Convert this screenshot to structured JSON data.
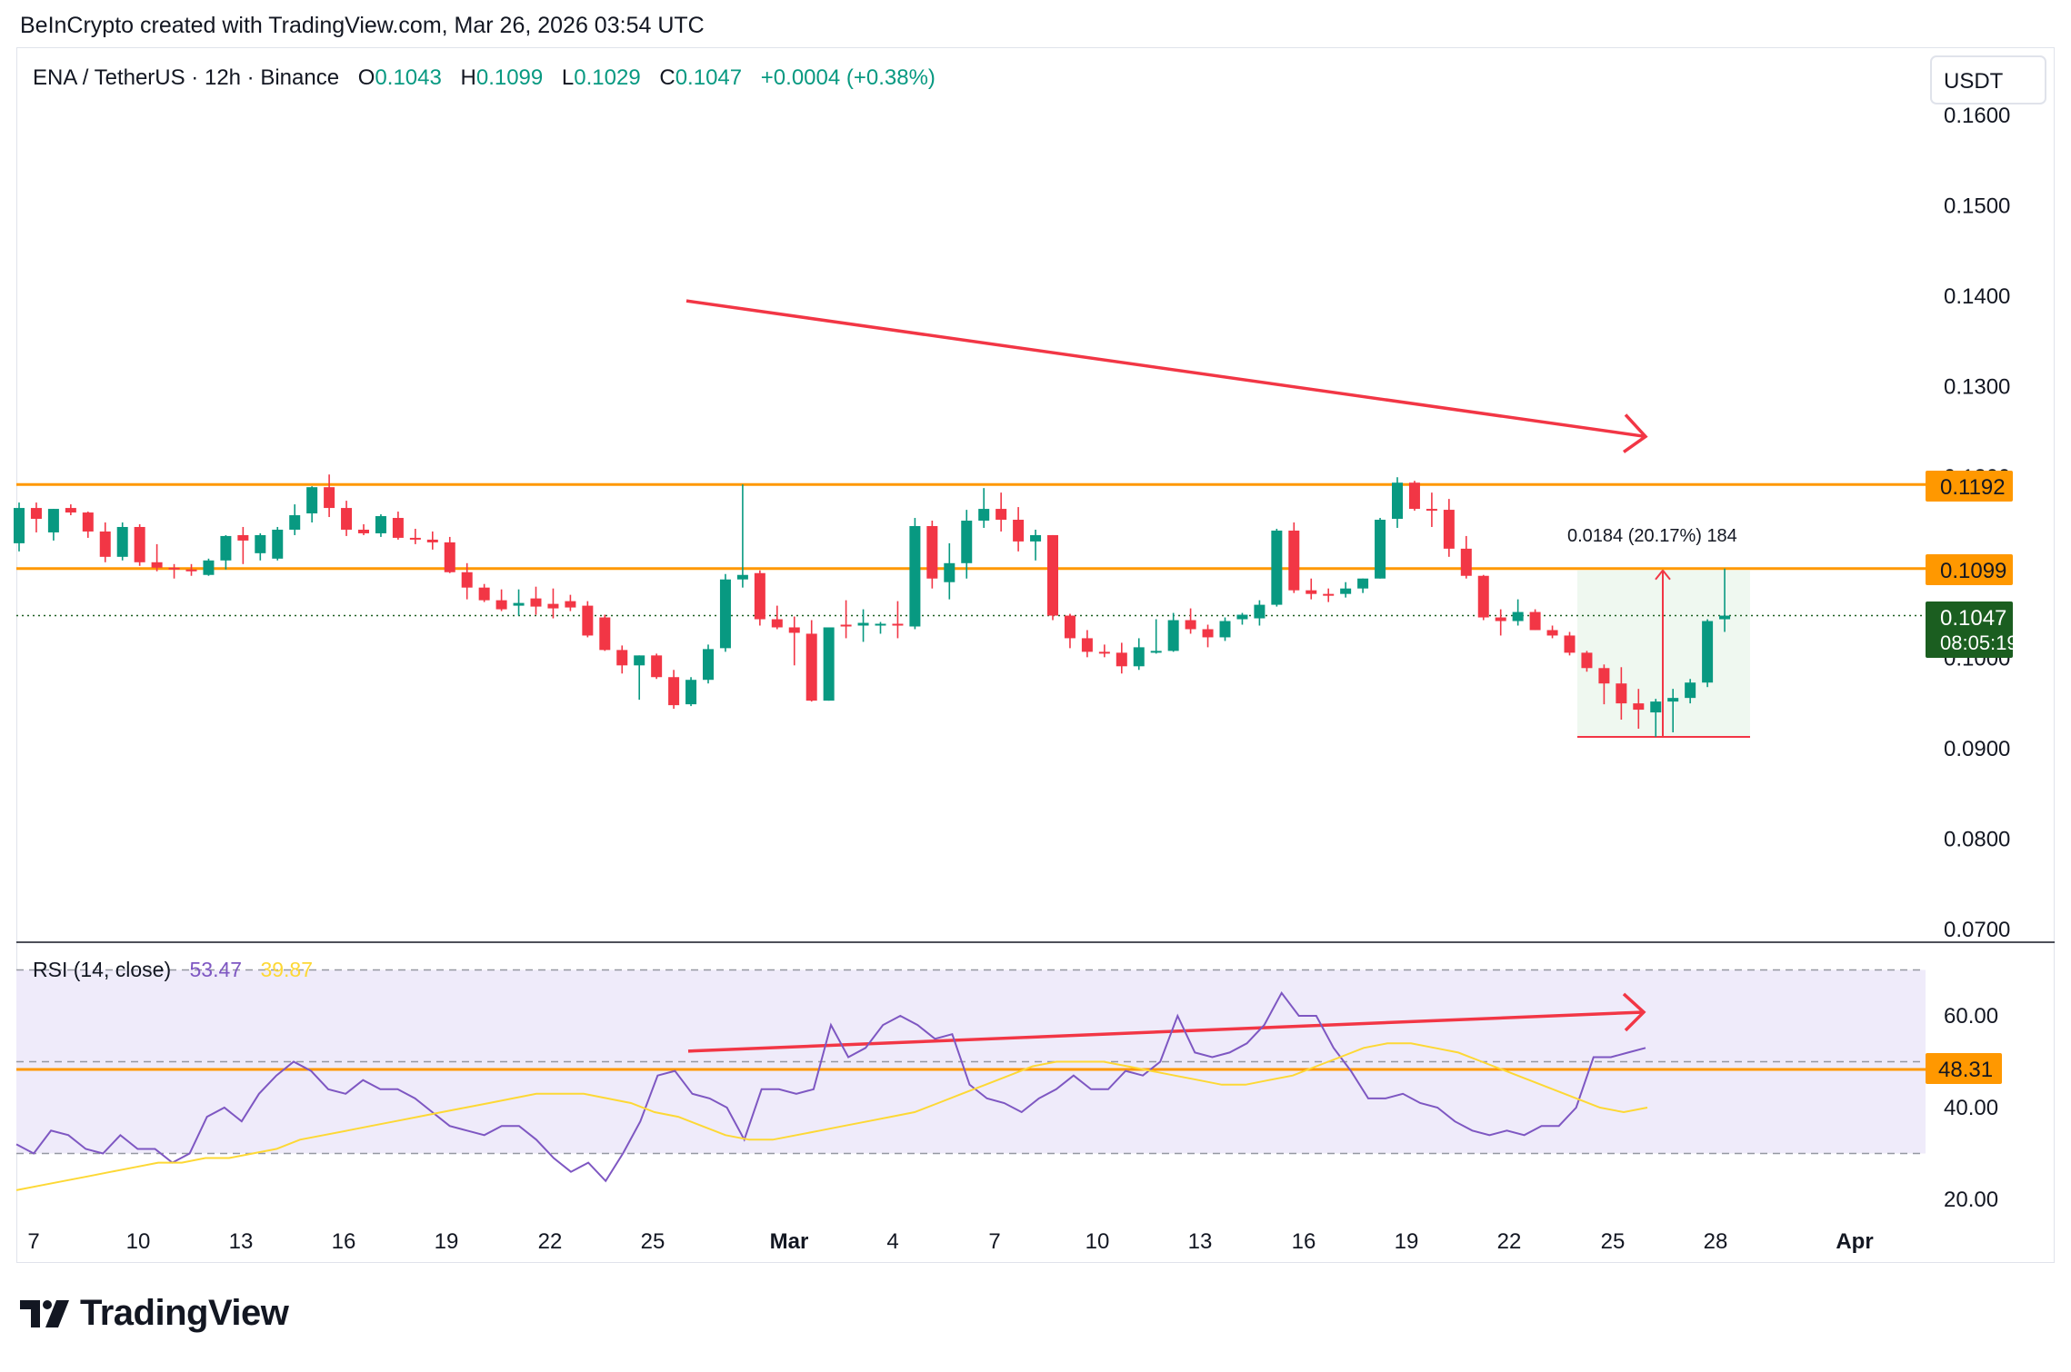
{
  "header": {
    "attribution": "BeInCrypto created with TradingView.com, Mar 26, 2026 03:54 UTC"
  },
  "legend": {
    "symbol": "ENA / TetherUS · 12h · Binance",
    "o_label": "O",
    "o_value": "0.1043",
    "h_label": "H",
    "h_value": "0.1099",
    "l_label": "L",
    "l_value": "0.1029",
    "c_label": "C",
    "c_value": "0.1047",
    "change": "+0.0004 (+0.38%)"
  },
  "currency_button": "USDT",
  "price_labels": {
    "resistance_upper": "0.1192",
    "resistance_lower": "0.1099",
    "last_price": "0.1047",
    "countdown": "08:05:19",
    "rsi_level": "48.31"
  },
  "measure_label": "0.0184 (20.17%) 184",
  "rsi_legend": {
    "name": "RSI (14, close)",
    "rsi_value": "53.47",
    "ma_value": "39.87"
  },
  "logo": {
    "text": "TradingView"
  },
  "colors": {
    "up": "#089981",
    "down": "#f23645",
    "support_line": "#ff9800",
    "trend_arrow": "#f23645",
    "rsi_line": "#7e57c2",
    "rsi_ma": "#fdd835",
    "rsi_band": "#efebfa"
  },
  "chart_data": [
    {
      "type": "candlestick",
      "title": "ENA / TetherUS · 12h · Binance",
      "y_axis_ticks": [
        "0.1600",
        "0.1500",
        "0.1400",
        "0.1300",
        "0.1200",
        "0.1100",
        "0.1000",
        "0.0900",
        "0.0800",
        "0.0700"
      ],
      "ylim": [
        0.07,
        0.165
      ],
      "x_tick_labels": [
        "7",
        "10",
        "13",
        "16",
        "19",
        "22",
        "25",
        "Mar",
        "4",
        "7",
        "10",
        "13",
        "16",
        "19",
        "22",
        "25",
        "28",
        "Apr"
      ],
      "horizontal_levels": [
        0.1192,
        0.1099
      ],
      "last_price": 0.1047,
      "trend_arrow": {
        "from": 0.1395,
        "to": 0.1245,
        "direction": "down"
      },
      "measure": {
        "low": 0.0913,
        "high": 0.1097,
        "label": "0.0184 (20.17%) 184"
      },
      "candles": [
        {
          "o": 0.1127,
          "h": 0.1172,
          "l": 0.1118,
          "c": 0.1166
        },
        {
          "o": 0.1166,
          "h": 0.1172,
          "l": 0.1139,
          "c": 0.1154
        },
        {
          "o": 0.1139,
          "h": 0.1165,
          "l": 0.113,
          "c": 0.1165
        },
        {
          "o": 0.1166,
          "h": 0.117,
          "l": 0.1158,
          "c": 0.1161
        },
        {
          "o": 0.1161,
          "h": 0.1162,
          "l": 0.1133,
          "c": 0.114
        },
        {
          "o": 0.114,
          "h": 0.115,
          "l": 0.1106,
          "c": 0.1112
        },
        {
          "o": 0.1112,
          "h": 0.115,
          "l": 0.1108,
          "c": 0.1145
        },
        {
          "o": 0.1145,
          "h": 0.1148,
          "l": 0.1102,
          "c": 0.1106
        },
        {
          "o": 0.1106,
          "h": 0.1126,
          "l": 0.1096,
          "c": 0.11
        },
        {
          "o": 0.11,
          "h": 0.1104,
          "l": 0.1088,
          "c": 0.1098
        },
        {
          "o": 0.1098,
          "h": 0.1104,
          "l": 0.1091,
          "c": 0.1096
        },
        {
          "o": 0.1092,
          "h": 0.111,
          "l": 0.1091,
          "c": 0.1108
        },
        {
          "o": 0.1108,
          "h": 0.1136,
          "l": 0.1098,
          "c": 0.1135
        },
        {
          "o": 0.1136,
          "h": 0.1145,
          "l": 0.1104,
          "c": 0.113
        },
        {
          "o": 0.1116,
          "h": 0.1138,
          "l": 0.1108,
          "c": 0.1136
        },
        {
          "o": 0.111,
          "h": 0.1145,
          "l": 0.1108,
          "c": 0.1142
        },
        {
          "o": 0.1142,
          "h": 0.117,
          "l": 0.1136,
          "c": 0.1158
        },
        {
          "o": 0.116,
          "h": 0.119,
          "l": 0.115,
          "c": 0.1189
        },
        {
          "o": 0.1189,
          "h": 0.1203,
          "l": 0.1156,
          "c": 0.1166
        },
        {
          "o": 0.1166,
          "h": 0.1174,
          "l": 0.1135,
          "c": 0.1142
        },
        {
          "o": 0.1142,
          "h": 0.1148,
          "l": 0.1136,
          "c": 0.1138
        },
        {
          "o": 0.1138,
          "h": 0.1159,
          "l": 0.1134,
          "c": 0.1157
        },
        {
          "o": 0.1155,
          "h": 0.1162,
          "l": 0.1131,
          "c": 0.1133
        },
        {
          "o": 0.1133,
          "h": 0.1143,
          "l": 0.1126,
          "c": 0.1131
        },
        {
          "o": 0.1131,
          "h": 0.114,
          "l": 0.112,
          "c": 0.1128
        },
        {
          "o": 0.1128,
          "h": 0.1134,
          "l": 0.1094,
          "c": 0.1095
        },
        {
          "o": 0.1095,
          "h": 0.1105,
          "l": 0.1065,
          "c": 0.1078
        },
        {
          "o": 0.1078,
          "h": 0.1082,
          "l": 0.1062,
          "c": 0.1064
        },
        {
          "o": 0.1064,
          "h": 0.1076,
          "l": 0.1052,
          "c": 0.1054
        },
        {
          "o": 0.1058,
          "h": 0.1076,
          "l": 0.1047,
          "c": 0.1061
        },
        {
          "o": 0.1066,
          "h": 0.1079,
          "l": 0.1048,
          "c": 0.1057
        },
        {
          "o": 0.106,
          "h": 0.1077,
          "l": 0.1044,
          "c": 0.1055
        },
        {
          "o": 0.1063,
          "h": 0.107,
          "l": 0.1052,
          "c": 0.1056
        },
        {
          "o": 0.1058,
          "h": 0.1063,
          "l": 0.1023,
          "c": 0.1025
        },
        {
          "o": 0.1045,
          "h": 0.1048,
          "l": 0.1008,
          "c": 0.1009
        },
        {
          "o": 0.1009,
          "h": 0.1014,
          "l": 0.0983,
          "c": 0.0992
        },
        {
          "o": 0.0992,
          "h": 0.1002,
          "l": 0.0954,
          "c": 0.1003
        },
        {
          "o": 0.1003,
          "h": 0.1005,
          "l": 0.0977,
          "c": 0.0979
        },
        {
          "o": 0.0979,
          "h": 0.0987,
          "l": 0.0944,
          "c": 0.0948
        },
        {
          "o": 0.0949,
          "h": 0.0979,
          "l": 0.0947,
          "c": 0.0976
        },
        {
          "o": 0.0976,
          "h": 0.1015,
          "l": 0.0972,
          "c": 0.101
        },
        {
          "o": 0.1011,
          "h": 0.1093,
          "l": 0.1007,
          "c": 0.1087
        },
        {
          "o": 0.1087,
          "h": 0.1192,
          "l": 0.1078,
          "c": 0.1092
        },
        {
          "o": 0.1094,
          "h": 0.1097,
          "l": 0.1036,
          "c": 0.1043
        },
        {
          "o": 0.1043,
          "h": 0.1058,
          "l": 0.1032,
          "c": 0.1034
        },
        {
          "o": 0.1034,
          "h": 0.1046,
          "l": 0.0992,
          "c": 0.1028
        },
        {
          "o": 0.1027,
          "h": 0.1042,
          "l": 0.0952,
          "c": 0.0953
        },
        {
          "o": 0.0953,
          "h": 0.1032,
          "l": 0.0953,
          "c": 0.1034
        },
        {
          "o": 0.1037,
          "h": 0.1064,
          "l": 0.1022,
          "c": 0.1036
        },
        {
          "o": 0.1036,
          "h": 0.1054,
          "l": 0.1018,
          "c": 0.1039
        },
        {
          "o": 0.1036,
          "h": 0.104,
          "l": 0.1027,
          "c": 0.1038
        },
        {
          "o": 0.1038,
          "h": 0.1063,
          "l": 0.1022,
          "c": 0.1037
        },
        {
          "o": 0.1035,
          "h": 0.1155,
          "l": 0.1032,
          "c": 0.1146
        },
        {
          "o": 0.1146,
          "h": 0.1152,
          "l": 0.1077,
          "c": 0.1088
        },
        {
          "o": 0.1084,
          "h": 0.1127,
          "l": 0.1065,
          "c": 0.1105
        },
        {
          "o": 0.1105,
          "h": 0.1164,
          "l": 0.1088,
          "c": 0.1152
        },
        {
          "o": 0.1152,
          "h": 0.1188,
          "l": 0.1144,
          "c": 0.1165
        },
        {
          "o": 0.1165,
          "h": 0.1183,
          "l": 0.114,
          "c": 0.1153
        },
        {
          "o": 0.1153,
          "h": 0.1167,
          "l": 0.1118,
          "c": 0.1129
        },
        {
          "o": 0.1129,
          "h": 0.1142,
          "l": 0.1108,
          "c": 0.1136
        },
        {
          "o": 0.1136,
          "h": 0.1132,
          "l": 0.1042,
          "c": 0.1047
        },
        {
          "o": 0.1047,
          "h": 0.1049,
          "l": 0.1011,
          "c": 0.1022
        },
        {
          "o": 0.1022,
          "h": 0.1031,
          "l": 0.1001,
          "c": 0.1007
        },
        {
          "o": 0.1007,
          "h": 0.1015,
          "l": 0.1001,
          "c": 0.1006
        },
        {
          "o": 0.1006,
          "h": 0.1017,
          "l": 0.0983,
          "c": 0.0991
        },
        {
          "o": 0.0991,
          "h": 0.1022,
          "l": 0.0987,
          "c": 0.1012
        },
        {
          "o": 0.1008,
          "h": 0.1043,
          "l": 0.1005,
          "c": 0.1008
        },
        {
          "o": 0.1008,
          "h": 0.105,
          "l": 0.1007,
          "c": 0.1042
        },
        {
          "o": 0.1042,
          "h": 0.1055,
          "l": 0.1027,
          "c": 0.1032
        },
        {
          "o": 0.1032,
          "h": 0.1037,
          "l": 0.1012,
          "c": 0.1023
        },
        {
          "o": 0.1023,
          "h": 0.1045,
          "l": 0.1019,
          "c": 0.1041
        },
        {
          "o": 0.1043,
          "h": 0.105,
          "l": 0.1037,
          "c": 0.1048
        },
        {
          "o": 0.1044,
          "h": 0.1064,
          "l": 0.1036,
          "c": 0.1059
        },
        {
          "o": 0.1059,
          "h": 0.1143,
          "l": 0.1057,
          "c": 0.1141
        },
        {
          "o": 0.1141,
          "h": 0.115,
          "l": 0.1072,
          "c": 0.1075
        },
        {
          "o": 0.1075,
          "h": 0.1088,
          "l": 0.1065,
          "c": 0.1071
        },
        {
          "o": 0.1071,
          "h": 0.1077,
          "l": 0.1062,
          "c": 0.107
        },
        {
          "o": 0.1071,
          "h": 0.1084,
          "l": 0.1067,
          "c": 0.1077
        },
        {
          "o": 0.1077,
          "h": 0.1088,
          "l": 0.1072,
          "c": 0.1088
        },
        {
          "o": 0.1088,
          "h": 0.1155,
          "l": 0.1088,
          "c": 0.1153
        },
        {
          "o": 0.1154,
          "h": 0.12,
          "l": 0.1144,
          "c": 0.1194
        },
        {
          "o": 0.1194,
          "h": 0.1196,
          "l": 0.1163,
          "c": 0.1165
        },
        {
          "o": 0.1165,
          "h": 0.1183,
          "l": 0.1145,
          "c": 0.1164
        },
        {
          "o": 0.1164,
          "h": 0.1176,
          "l": 0.1112,
          "c": 0.1121
        },
        {
          "o": 0.1121,
          "h": 0.1135,
          "l": 0.1088,
          "c": 0.1091
        },
        {
          "o": 0.1091,
          "h": 0.1092,
          "l": 0.1042,
          "c": 0.1045
        },
        {
          "o": 0.1045,
          "h": 0.1054,
          "l": 0.1025,
          "c": 0.1041
        },
        {
          "o": 0.1041,
          "h": 0.1065,
          "l": 0.1036,
          "c": 0.1051
        },
        {
          "o": 0.1051,
          "h": 0.1054,
          "l": 0.1031,
          "c": 0.1031
        },
        {
          "o": 0.1031,
          "h": 0.1036,
          "l": 0.1022,
          "c": 0.1025
        },
        {
          "o": 0.1025,
          "h": 0.1029,
          "l": 0.1003,
          "c": 0.1006
        },
        {
          "o": 0.1006,
          "h": 0.1008,
          "l": 0.0985,
          "c": 0.0989
        },
        {
          "o": 0.0989,
          "h": 0.0993,
          "l": 0.0949,
          "c": 0.0972
        },
        {
          "o": 0.0972,
          "h": 0.099,
          "l": 0.0932,
          "c": 0.095
        },
        {
          "o": 0.095,
          "h": 0.0966,
          "l": 0.0922,
          "c": 0.0943
        },
        {
          "o": 0.094,
          "h": 0.0955,
          "l": 0.0913,
          "c": 0.0952
        },
        {
          "o": 0.0952,
          "h": 0.0966,
          "l": 0.0918,
          "c": 0.0956
        },
        {
          "o": 0.0956,
          "h": 0.0977,
          "l": 0.095,
          "c": 0.0973
        },
        {
          "o": 0.0973,
          "h": 0.1043,
          "l": 0.0968,
          "c": 0.1041
        },
        {
          "o": 0.1043,
          "h": 0.1099,
          "l": 0.1029,
          "c": 0.1047
        }
      ]
    },
    {
      "type": "line",
      "title": "RSI (14, close)",
      "y_axis_ticks": [
        "60.00",
        "40.00",
        "20.00"
      ],
      "ylim": [
        16,
        76
      ],
      "bands": {
        "upper": 70,
        "middle": 50,
        "lower": 30
      },
      "horizontal_levels": [
        48.31
      ],
      "series": [
        {
          "name": "RSI",
          "values": [
            32,
            30,
            35,
            34,
            31,
            30,
            34,
            31,
            31,
            28,
            30,
            38,
            40,
            37,
            43,
            47,
            50,
            48,
            44,
            43,
            46,
            44,
            44,
            42,
            39,
            36,
            35,
            34,
            36,
            36,
            33,
            29,
            26,
            28,
            24,
            30,
            37,
            47,
            48,
            43,
            42,
            40,
            33,
            44,
            44,
            43,
            44,
            58,
            51,
            53,
            58,
            60,
            58,
            55,
            56,
            45,
            42,
            41,
            39,
            42,
            44,
            47,
            44,
            44,
            48,
            47,
            50,
            60,
            52,
            51,
            52,
            54,
            58,
            65,
            60,
            60,
            53,
            48,
            42,
            42,
            43,
            41,
            40,
            37,
            35,
            34,
            35,
            34,
            36,
            36,
            40,
            51,
            51,
            52,
            53
          ]
        },
        {
          "name": "RSI-based MA",
          "values": [
            22,
            23,
            24,
            25,
            26,
            27,
            28,
            28,
            29,
            29,
            30,
            31,
            33,
            34,
            35,
            36,
            37,
            38,
            39,
            40,
            41,
            42,
            43,
            43,
            43,
            42,
            41,
            39,
            38,
            36,
            34,
            33,
            33,
            34,
            35,
            36,
            37,
            38,
            39,
            41,
            43,
            45,
            47,
            49,
            50,
            50,
            50,
            49,
            48,
            47,
            46,
            45,
            45,
            46,
            47,
            49,
            51,
            53,
            54,
            54,
            53,
            52,
            50,
            48,
            46,
            44,
            42,
            40,
            39,
            40
          ]
        }
      ]
    }
  ]
}
